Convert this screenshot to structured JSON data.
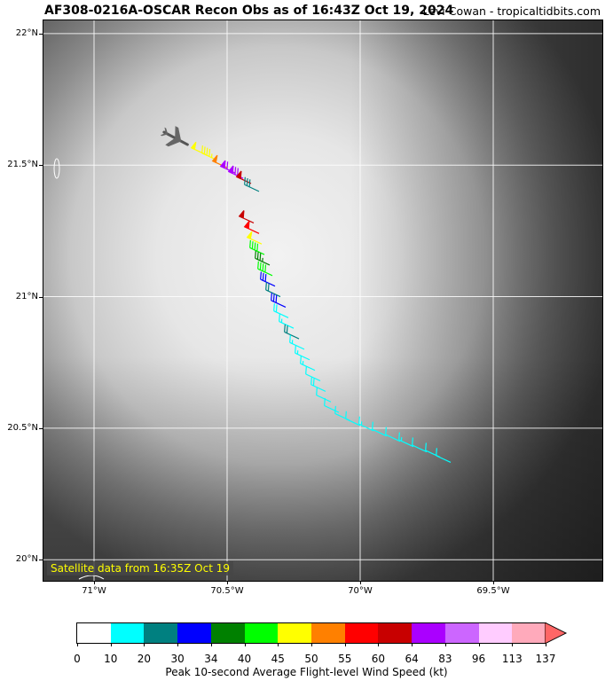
{
  "header": {
    "title": "AF308-0216A-OSCAR Recon Obs as of 16:43Z Oct 19, 2024",
    "credit": "Levi Cowan - tropicaltidbits.com"
  },
  "satellite_label": "Satellite data from 16:35Z Oct 19",
  "map": {
    "lon_range": [
      -71.19,
      -69.09
    ],
    "lat_range": [
      19.92,
      22.05
    ],
    "lat_ticks": [
      {
        "value": 22.0,
        "label": "22°N"
      },
      {
        "value": 21.5,
        "label": "21.5°N"
      },
      {
        "value": 21.0,
        "label": "21°N"
      },
      {
        "value": 20.5,
        "label": "20.5°N"
      },
      {
        "value": 20.0,
        "label": "20°N"
      }
    ],
    "lon_ticks": [
      {
        "value": -71.0,
        "label": "71°W"
      },
      {
        "value": -70.5,
        "label": "70.5°W"
      },
      {
        "value": -70.0,
        "label": "70°W"
      },
      {
        "value": -69.5,
        "label": "69.5°W"
      }
    ],
    "aircraft_icon": "airplane-icon",
    "aircraft_position": {
      "lon": -70.69,
      "lat": 21.6
    }
  },
  "flight_obs": [
    {
      "lon": -70.58,
      "lat": 21.54,
      "kt": 48
    },
    {
      "lon": -70.54,
      "lat": 21.52,
      "kt": 47
    },
    {
      "lon": -70.5,
      "lat": 21.49,
      "kt": 52
    },
    {
      "lon": -70.47,
      "lat": 21.47,
      "kt": 70
    },
    {
      "lon": -70.44,
      "lat": 21.45,
      "kt": 80
    },
    {
      "lon": -70.41,
      "lat": 21.43,
      "kt": 62
    },
    {
      "lon": -70.38,
      "lat": 21.4,
      "kt": 28
    },
    {
      "lon": -70.4,
      "lat": 21.28,
      "kt": 60
    },
    {
      "lon": -70.38,
      "lat": 21.24,
      "kt": 58
    },
    {
      "lon": -70.37,
      "lat": 21.2,
      "kt": 48
    },
    {
      "lon": -70.36,
      "lat": 21.16,
      "kt": 42
    },
    {
      "lon": -70.34,
      "lat": 21.12,
      "kt": 36
    },
    {
      "lon": -70.33,
      "lat": 21.08,
      "kt": 40
    },
    {
      "lon": -70.32,
      "lat": 21.04,
      "kt": 31
    },
    {
      "lon": -70.3,
      "lat": 21.0,
      "kt": 22
    },
    {
      "lon": -70.28,
      "lat": 20.96,
      "kt": 30
    },
    {
      "lon": -70.27,
      "lat": 20.92,
      "kt": 18
    },
    {
      "lon": -70.25,
      "lat": 20.88,
      "kt": 17
    },
    {
      "lon": -70.23,
      "lat": 20.84,
      "kt": 20
    },
    {
      "lon": -70.21,
      "lat": 20.8,
      "kt": 15
    },
    {
      "lon": -70.19,
      "lat": 20.76,
      "kt": 13
    },
    {
      "lon": -70.17,
      "lat": 20.72,
      "kt": 14
    },
    {
      "lon": -70.15,
      "lat": 20.68,
      "kt": 12
    },
    {
      "lon": -70.13,
      "lat": 20.64,
      "kt": 18
    },
    {
      "lon": -70.11,
      "lat": 20.6,
      "kt": 12
    },
    {
      "lon": -70.08,
      "lat": 20.56,
      "kt": 11
    },
    {
      "lon": -70.04,
      "lat": 20.53,
      "kt": 12
    },
    {
      "lon": -70.0,
      "lat": 20.51,
      "kt": 11
    },
    {
      "lon": -69.95,
      "lat": 20.49,
      "kt": 13
    },
    {
      "lon": -69.9,
      "lat": 20.47,
      "kt": 12
    },
    {
      "lon": -69.85,
      "lat": 20.45,
      "kt": 11
    },
    {
      "lon": -69.8,
      "lat": 20.43,
      "kt": 13
    },
    {
      "lon": -69.75,
      "lat": 20.41,
      "kt": 12
    },
    {
      "lon": -69.7,
      "lat": 20.39,
      "kt": 11
    },
    {
      "lon": -69.66,
      "lat": 20.37,
      "kt": 12
    }
  ],
  "colorbar": {
    "label": "Peak 10-second Average Flight-level Wind Speed (kt)",
    "ticks": [
      "0",
      "10",
      "20",
      "30",
      "34",
      "40",
      "45",
      "50",
      "55",
      "60",
      "64",
      "83",
      "96",
      "113",
      "137"
    ],
    "colors": [
      "#ffffff",
      "#00ffff",
      "#008080",
      "#0000ff",
      "#008000",
      "#00ff00",
      "#ffff00",
      "#ff8000",
      "#ff0000",
      "#c80000",
      "#aa00ff",
      "#cc66ff",
      "#ffccff",
      "#ffaabb"
    ],
    "arrow_color": "#ff6666"
  }
}
